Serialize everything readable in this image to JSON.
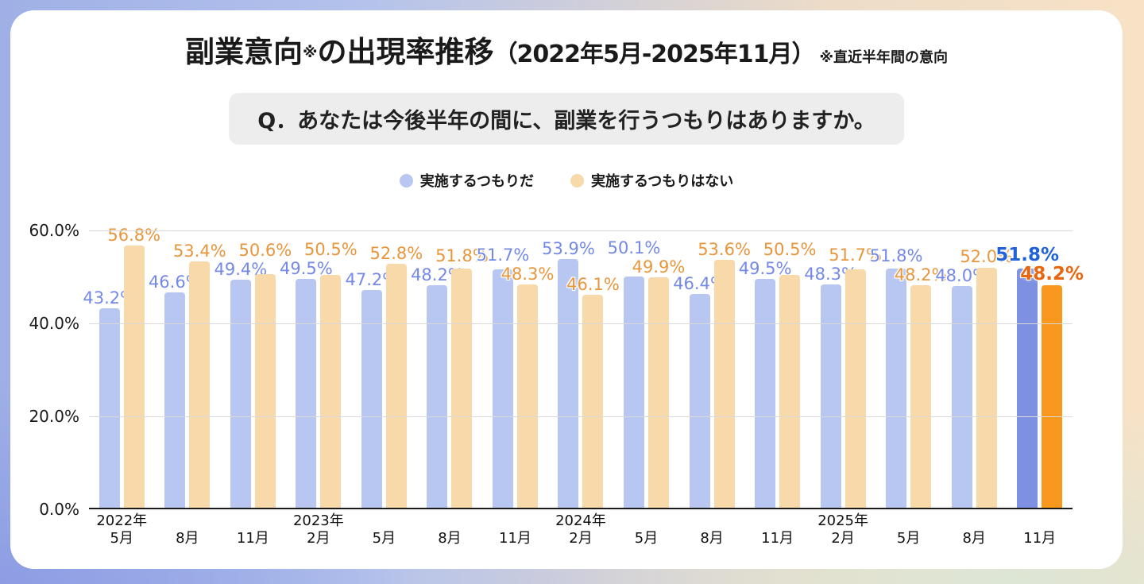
{
  "title": {
    "main": "副業意向",
    "note_mark": "※",
    "rest": "の出現率推移",
    "range": "（2022年5月-2025年11月）",
    "note": "※直近半年間の意向"
  },
  "question": {
    "text": "Q．あなたは今後半年の間に、副業を行うつもりはありますか。"
  },
  "legend": {
    "items": [
      {
        "label": "実施するつもりだ",
        "color": "#b7c7f2"
      },
      {
        "label": "実施するつもりはない",
        "color": "#f8d9a9"
      }
    ]
  },
  "chart_data": {
    "type": "bar",
    "title": "副業意向の出現率推移（2022年5月-2025年11月）",
    "categories": [
      "2022年5月",
      "2022年8月",
      "2022年11月",
      "2023年2月",
      "2023年5月",
      "2023年8月",
      "2023年11月",
      "2024年2月",
      "2024年5月",
      "2024年8月",
      "2024年11月",
      "2025年2月",
      "2025年5月",
      "2025年8月",
      "2025年11月"
    ],
    "x_years": [
      "2022年",
      "",
      "",
      "2023年",
      "",
      "",
      "",
      "2024年",
      "",
      "",
      "",
      "2025年",
      "",
      "",
      ""
    ],
    "x_months": [
      "5月",
      "8月",
      "11月",
      "2月",
      "5月",
      "8月",
      "11月",
      "2月",
      "5月",
      "8月",
      "11月",
      "2月",
      "5月",
      "8月",
      "11月"
    ],
    "series": [
      {
        "name": "実施するつもりだ",
        "values": [
          43.2,
          46.6,
          49.4,
          49.5,
          47.2,
          48.2,
          51.7,
          53.9,
          50.1,
          46.4,
          49.5,
          48.3,
          51.8,
          48.0,
          51.8
        ],
        "color": "#b7c7f2",
        "highlight_color": "#7d90e2",
        "label_color": "#7489e6",
        "highlight_label_color": "#2063d8"
      },
      {
        "name": "実施するつもりはない",
        "values": [
          56.8,
          53.4,
          50.6,
          50.5,
          52.8,
          51.8,
          48.3,
          46.1,
          49.9,
          53.6,
          50.5,
          51.7,
          48.2,
          52.0,
          48.2
        ],
        "color": "#f8d9a9",
        "highlight_color": "#f8981f",
        "label_color": "#e8963c",
        "highlight_label_color": "#e9650e"
      }
    ],
    "highlight_index": 14,
    "ylim": [
      0,
      60
    ],
    "yticks": [
      {
        "label": "60.0%",
        "value": 60
      },
      {
        "label": "40.0%",
        "value": 40
      },
      {
        "label": "20.0%",
        "value": 20
      },
      {
        "label": "0.0%",
        "value": 0
      }
    ],
    "grid": true,
    "legend_position": "top"
  }
}
